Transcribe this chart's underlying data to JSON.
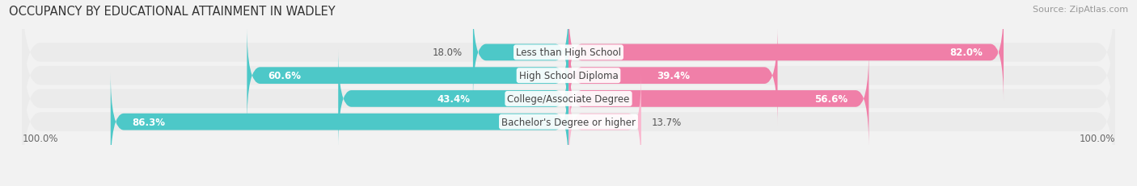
{
  "title": "OCCUPANCY BY EDUCATIONAL ATTAINMENT IN WADLEY",
  "source": "Source: ZipAtlas.com",
  "categories": [
    "Less than High School",
    "High School Diploma",
    "College/Associate Degree",
    "Bachelor's Degree or higher"
  ],
  "owner_values": [
    18.0,
    60.6,
    43.4,
    86.3
  ],
  "renter_values": [
    82.0,
    39.4,
    56.6,
    13.7
  ],
  "owner_color": "#4dc8c8",
  "renter_color": "#f07fa8",
  "renter_color_light": "#f9b8cf",
  "bg_color": "#f2f2f2",
  "bar_bg_color": "#e8e8e8",
  "row_bg_color": "#ebebeb",
  "title_fontsize": 10.5,
  "label_fontsize": 8.5,
  "value_fontsize": 8.5,
  "legend_fontsize": 9,
  "source_fontsize": 8
}
